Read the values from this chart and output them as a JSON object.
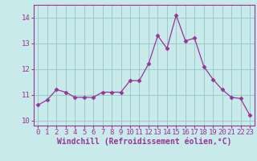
{
  "x": [
    0,
    1,
    2,
    3,
    4,
    5,
    6,
    7,
    8,
    9,
    10,
    11,
    12,
    13,
    14,
    15,
    16,
    17,
    18,
    19,
    20,
    21,
    22,
    23
  ],
  "y": [
    10.6,
    10.8,
    11.2,
    11.1,
    10.9,
    10.9,
    10.9,
    11.1,
    11.1,
    11.1,
    11.55,
    11.55,
    12.2,
    13.3,
    12.8,
    14.1,
    13.1,
    13.2,
    12.1,
    11.6,
    11.2,
    10.9,
    10.85,
    10.2
  ],
  "line_color": "#993399",
  "marker": "D",
  "marker_size": 2.5,
  "bg_color": "#c8eaea",
  "grid_color": "#99cccc",
  "xlabel": "Windchill (Refroidissement éolien,°C)",
  "xlabel_color": "#993399",
  "tick_color": "#993399",
  "ylim": [
    9.8,
    14.5
  ],
  "xlim": [
    -0.5,
    23.5
  ],
  "yticks": [
    10,
    11,
    12,
    13,
    14
  ],
  "xticks": [
    0,
    1,
    2,
    3,
    4,
    5,
    6,
    7,
    8,
    9,
    10,
    11,
    12,
    13,
    14,
    15,
    16,
    17,
    18,
    19,
    20,
    21,
    22,
    23
  ],
  "spine_color": "#993399",
  "tick_fontsize": 6.5,
  "xlabel_fontsize": 7.0
}
